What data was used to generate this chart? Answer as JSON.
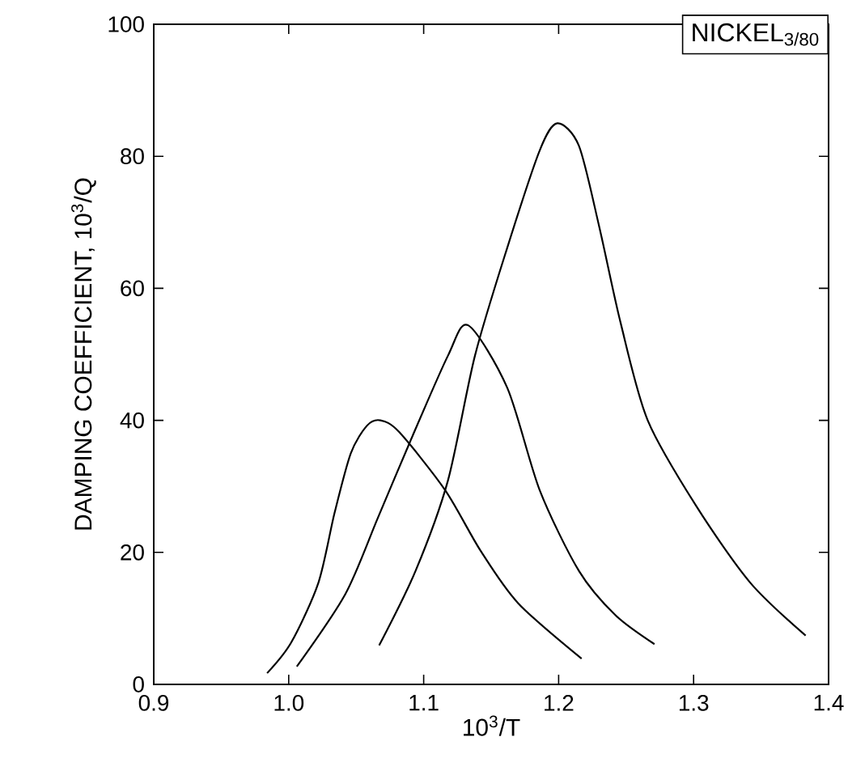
{
  "chart_data": {
    "type": "line",
    "title": "NICKEL$_{3/80}$",
    "xlabel": "10$^{3}$/T",
    "ylabel": "DAMPING  COEFFICIENT,  10$^{3}$/Q",
    "xlim": [
      0.9,
      1.4
    ],
    "ylim": [
      0,
      100
    ],
    "xticks": [
      0.9,
      {
        "value": 1.0,
        "label": "1.0"
      },
      1.1,
      1.2,
      1.3,
      1.4
    ],
    "yticks": [
      0,
      20,
      40,
      60,
      80,
      100
    ],
    "marker": "none",
    "line_style": "solid",
    "series": [
      {
        "color": "#000000",
        "x": [
          0.984,
          1.002,
          1.022,
          1.034,
          1.046,
          1.058,
          1.068,
          1.082,
          1.116,
          1.142,
          1.17,
          1.217
        ],
        "values": [
          1.7,
          6.4,
          15.4,
          26,
          35,
          39.2,
          40,
          38.2,
          29.4,
          20.3,
          12.3,
          3.9
        ]
      },
      {
        "color": "#000000",
        "x": [
          1.006,
          1.042,
          1.066,
          1.09,
          1.118,
          1.133,
          1.162,
          1.186,
          1.215,
          1.242,
          1.271
        ],
        "values": [
          2.7,
          13.7,
          25.2,
          36.8,
          49.8,
          54.4,
          44.9,
          29.4,
          17.2,
          10.5,
          6.1
        ]
      },
      {
        "color": "#000000",
        "x": [
          1.067,
          1.094,
          1.118,
          1.138,
          1.162,
          1.186,
          1.199,
          1.215,
          1.23,
          1.246,
          1.266,
          1.302,
          1.342,
          1.383
        ],
        "values": [
          5.9,
          17.2,
          30.9,
          49.8,
          66.2,
          80.9,
          85,
          81.6,
          69.4,
          54.7,
          40,
          27,
          15.4,
          7.4
        ]
      }
    ]
  }
}
